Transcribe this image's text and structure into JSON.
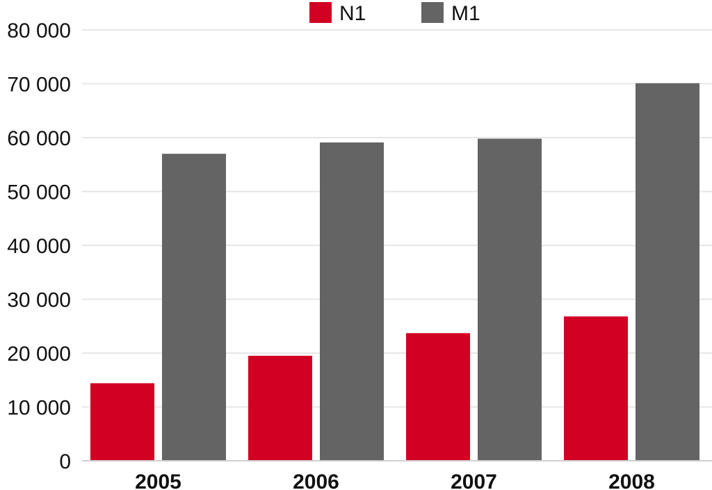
{
  "chart_data": {
    "type": "bar",
    "title": "",
    "xlabel": "",
    "ylabel": "",
    "categories": [
      "2005",
      "2006",
      "2007",
      "2008"
    ],
    "series": [
      {
        "name": "N1",
        "color": "#d20022",
        "values": [
          14400,
          19500,
          23700,
          26800
        ]
      },
      {
        "name": "M1",
        "color": "#646464",
        "values": [
          57000,
          59100,
          59800,
          70100
        ]
      }
    ],
    "ylim": [
      0,
      80000
    ],
    "yticks": [
      0,
      10000,
      20000,
      30000,
      40000,
      50000,
      60000,
      70000,
      80000
    ],
    "ytick_labels": [
      "0",
      "10 000",
      "20 000",
      "30 000",
      "40 000",
      "50 000",
      "60 000",
      "70 000",
      "80 000"
    ],
    "grid": true,
    "legend_position": "top-center"
  }
}
